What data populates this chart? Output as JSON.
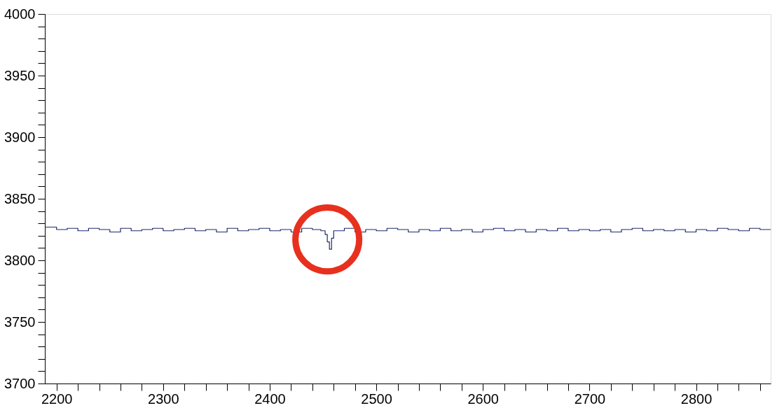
{
  "chart_data": {
    "type": "step",
    "x": [
      2189,
      2200,
      2210,
      2220,
      2230,
      2240,
      2250,
      2260,
      2270,
      2280,
      2290,
      2300,
      2310,
      2320,
      2330,
      2340,
      2350,
      2360,
      2370,
      2380,
      2390,
      2400,
      2410,
      2420,
      2430,
      2440,
      2448,
      2452,
      2454,
      2456,
      2458,
      2460,
      2470,
      2480,
      2490,
      2500,
      2510,
      2520,
      2530,
      2540,
      2550,
      2560,
      2570,
      2580,
      2590,
      2600,
      2610,
      2620,
      2630,
      2640,
      2650,
      2660,
      2670,
      2680,
      2690,
      2700,
      2710,
      2720,
      2730,
      2740,
      2750,
      2760,
      2770,
      2780,
      2790,
      2800,
      2810,
      2820,
      2830,
      2840,
      2850,
      2860,
      2870
    ],
    "series": [
      {
        "color": "#1f2a6b",
        "values": [
          3827,
          3825,
          3826,
          3824,
          3826,
          3825,
          3823,
          3826,
          3824,
          3825,
          3826,
          3824,
          3825,
          3826,
          3824,
          3825,
          3823,
          3826,
          3824,
          3825,
          3826,
          3824,
          3825,
          3823,
          3826,
          3825,
          3824,
          3821,
          3815,
          3809,
          3818,
          3824,
          3826,
          3823,
          3825,
          3824,
          3826,
          3825,
          3823,
          3825,
          3824,
          3826,
          3824,
          3825,
          3823,
          3825,
          3826,
          3824,
          3825,
          3823,
          3825,
          3824,
          3826,
          3824,
          3825,
          3824,
          3825,
          3823,
          3825,
          3826,
          3824,
          3825,
          3824,
          3825,
          3823,
          3825,
          3824,
          3826,
          3825,
          3824,
          3826,
          3825,
          3825
        ]
      }
    ],
    "xlim": [
      2189,
      2870
    ],
    "ylim": [
      3700,
      4000
    ],
    "xticks": [
      2200,
      {
        "value": 2220,
        "label": null
      },
      {
        "value": 2240,
        "label": null
      },
      {
        "value": 2260,
        "label": null
      },
      {
        "value": 2280,
        "label": null
      },
      2300,
      {
        "value": 2320,
        "label": null
      },
      {
        "value": 2340,
        "label": null
      },
      {
        "value": 2360,
        "label": null
      },
      {
        "value": 2380,
        "label": null
      },
      2400,
      {
        "value": 2420,
        "label": null
      },
      {
        "value": 2440,
        "label": null
      },
      {
        "value": 2460,
        "label": null
      },
      {
        "value": 2480,
        "label": null
      },
      2500,
      {
        "value": 2520,
        "label": null
      },
      {
        "value": 2540,
        "label": null
      },
      {
        "value": 2560,
        "label": null
      },
      {
        "value": 2580,
        "label": null
      },
      2600,
      {
        "value": 2620,
        "label": null
      },
      {
        "value": 2640,
        "label": null
      },
      {
        "value": 2660,
        "label": null
      },
      {
        "value": 2680,
        "label": null
      },
      2700,
      {
        "value": 2720,
        "label": null
      },
      {
        "value": 2740,
        "label": null
      },
      {
        "value": 2760,
        "label": null
      },
      {
        "value": 2780,
        "label": null
      },
      2800,
      {
        "value": 2820,
        "label": null
      },
      {
        "value": 2840,
        "label": null
      },
      {
        "value": 2860,
        "label": null
      }
    ],
    "yticks": [
      3700,
      {
        "value": 3710,
        "label": null
      },
      {
        "value": 3720,
        "label": null
      },
      {
        "value": 3730,
        "label": null
      },
      {
        "value": 3740,
        "label": null
      },
      3750,
      {
        "value": 3760,
        "label": null
      },
      {
        "value": 3770,
        "label": null
      },
      {
        "value": 3780,
        "label": null
      },
      {
        "value": 3790,
        "label": null
      },
      3800,
      {
        "value": 3810,
        "label": null
      },
      {
        "value": 3820,
        "label": null
      },
      {
        "value": 3830,
        "label": null
      },
      {
        "value": 3840,
        "label": null
      },
      3850,
      {
        "value": 3860,
        "label": null
      },
      {
        "value": 3870,
        "label": null
      },
      {
        "value": 3880,
        "label": null
      },
      {
        "value": 3890,
        "label": null
      },
      3900,
      {
        "value": 3910,
        "label": null
      },
      {
        "value": 3920,
        "label": null
      },
      {
        "value": 3930,
        "label": null
      },
      {
        "value": 3940,
        "label": null
      },
      3950,
      {
        "value": 3960,
        "label": null
      },
      {
        "value": 3970,
        "label": null
      },
      {
        "value": 3980,
        "label": null
      },
      {
        "value": 3990,
        "label": null
      },
      4000
    ],
    "grid": false,
    "legend": false
  }
}
